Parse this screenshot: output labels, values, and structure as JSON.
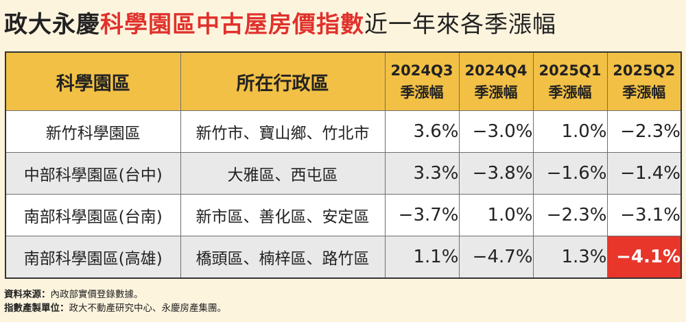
{
  "title": {
    "part1": "政大永慶",
    "part2": "科學園區中古屋房價指數",
    "part3": "近一年來各季漲幅"
  },
  "table": {
    "headers": {
      "park": "科學園區",
      "district": "所在行政區",
      "quarters": [
        {
          "q": "2024Q3",
          "sub": "季漲幅"
        },
        {
          "q": "2024Q4",
          "sub": "季漲幅"
        },
        {
          "q": "2025Q1",
          "sub": "季漲幅"
        },
        {
          "q": "2025Q2",
          "sub": "季漲幅"
        }
      ]
    },
    "rows": [
      {
        "park": "新竹科學園區",
        "district": "新竹市、寶山鄉、竹北市",
        "values": [
          "3.6%",
          "−3.0%",
          "1.0%",
          "−2.3%"
        ]
      },
      {
        "park": "中部科學園區(台中)",
        "district": "大雅區、西屯區",
        "values": [
          "3.3%",
          "−3.8%",
          "−1.6%",
          "−1.4%"
        ]
      },
      {
        "park": "南部科學園區(台南)",
        "district": "新市區、善化區、安定區",
        "values": [
          "−3.7%",
          "1.0%",
          "−2.3%",
          "−3.1%"
        ]
      },
      {
        "park": "南部科學園區(高雄)",
        "district": "橋頭區、楠梓區、路竹區",
        "values": [
          "1.1%",
          "−4.7%",
          "1.3%",
          "−4.1%"
        ]
      }
    ]
  },
  "footer": {
    "source_label": "資料來源：",
    "source_text": "內政部實價登錄數據。",
    "producer_label": "指數產製單位：",
    "producer_text": "政大不動產研究中心、永慶房產集團。"
  },
  "colors": {
    "header_bg": "#f2c045",
    "highlight_bg": "#e8362b",
    "title_accent": "#e0312c",
    "page_bg": "#fdf4de"
  }
}
